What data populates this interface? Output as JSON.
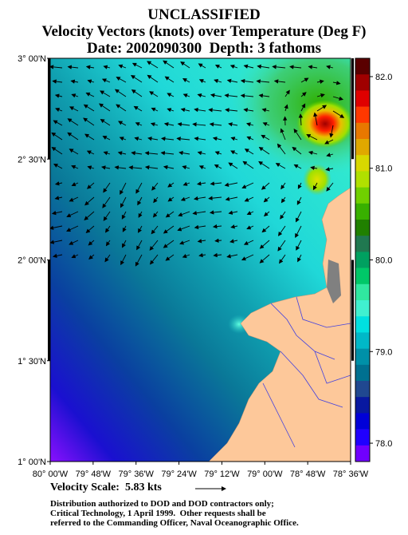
{
  "header": {
    "classification": "UNCLASSIFIED",
    "title": "Velocity Vectors (knots) over Temperature (Deg F)",
    "subtitle": "Date: 2002090300  Depth: 3 fathoms"
  },
  "map": {
    "lat_range": [
      1,
      3
    ],
    "lon_range": [
      -80,
      -78.6
    ],
    "lat_ticks": [
      {
        "value": 3,
        "label": "3° 00'N"
      },
      {
        "value": 2.5,
        "label": "2° 30'N"
      },
      {
        "value": 2,
        "label": "2° 00'N"
      },
      {
        "value": 1.5,
        "label": "1° 30'N"
      },
      {
        "value": 1,
        "label": "1° 00'N"
      }
    ],
    "lon_ticks": [
      {
        "value": -80,
        "label": "80° 00'W"
      },
      {
        "value": -79.8,
        "label": "79° 48'W"
      },
      {
        "value": -79.6,
        "label": "79° 36'W"
      },
      {
        "value": -79.4,
        "label": "79° 24'W"
      },
      {
        "value": -79.2,
        "label": "79° 12'W"
      },
      {
        "value": -79,
        "label": "79° 00'W"
      },
      {
        "value": -78.8,
        "label": "78° 48'W"
      },
      {
        "value": -78.6,
        "label": "78° 36'W"
      }
    ]
  },
  "colorbar": {
    "range": [
      77.8,
      82.2
    ],
    "ticks": [
      {
        "value": 82,
        "label": "82.0"
      },
      {
        "value": 81,
        "label": "81.0"
      },
      {
        "value": 80,
        "label": "80.0"
      },
      {
        "value": 79,
        "label": "79.0"
      },
      {
        "value": 78,
        "label": "78.0"
      }
    ],
    "colors": [
      "#5a0000",
      "#a00000",
      "#e00000",
      "#ff3800",
      "#e87800",
      "#e0a800",
      "#d8d800",
      "#b0e000",
      "#70d000",
      "#38b000",
      "#208000",
      "#207850",
      "#00a060",
      "#00c868",
      "#30e8a0",
      "#40f0d0",
      "#00e0e0",
      "#00b8c8",
      "#0090a8",
      "#007090",
      "#204890",
      "#0818a0",
      "#0000d8",
      "#2000ff",
      "#7000ff"
    ]
  },
  "footer": {
    "velocity_scale": "Velocity Scale:  5.83 kts",
    "notice": [
      "Distribution authorized to DOD and DOD contractors only;",
      "Critical Technology, 1 April 1999.  Other requests shall be",
      "referred to the Commanding Officer, Naval Oceanographic Office."
    ]
  }
}
